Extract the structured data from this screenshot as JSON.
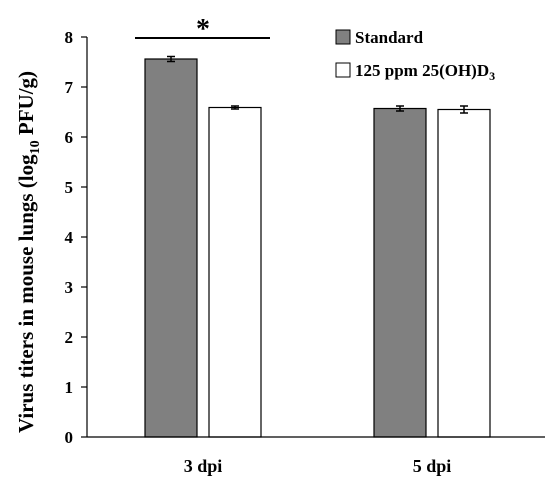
{
  "chart_data": {
    "type": "bar",
    "categories": [
      "3 dpi",
      "5 dpi"
    ],
    "series": [
      {
        "name": "Standard",
        "values": [
          7.56,
          6.57
        ],
        "errors": [
          0.05,
          0.05
        ],
        "color": "#808080"
      },
      {
        "name_parts": [
          "125 ppm 25(OH)D",
          "3"
        ],
        "values": [
          6.59,
          6.55
        ],
        "errors": [
          0.03,
          0.07
        ],
        "color": "#ffffff"
      }
    ],
    "ylabel_parts": [
      "Virus titers in mouse lungs (log",
      "10",
      " PFU/g)"
    ],
    "ylim": [
      0,
      8
    ],
    "yticks": [
      "0",
      "1",
      "2",
      "3",
      "4",
      "5",
      "6",
      "7",
      "8"
    ],
    "significance": {
      "label": "*",
      "category": "3 dpi"
    },
    "legend_position": "top-right",
    "grid": false
  }
}
